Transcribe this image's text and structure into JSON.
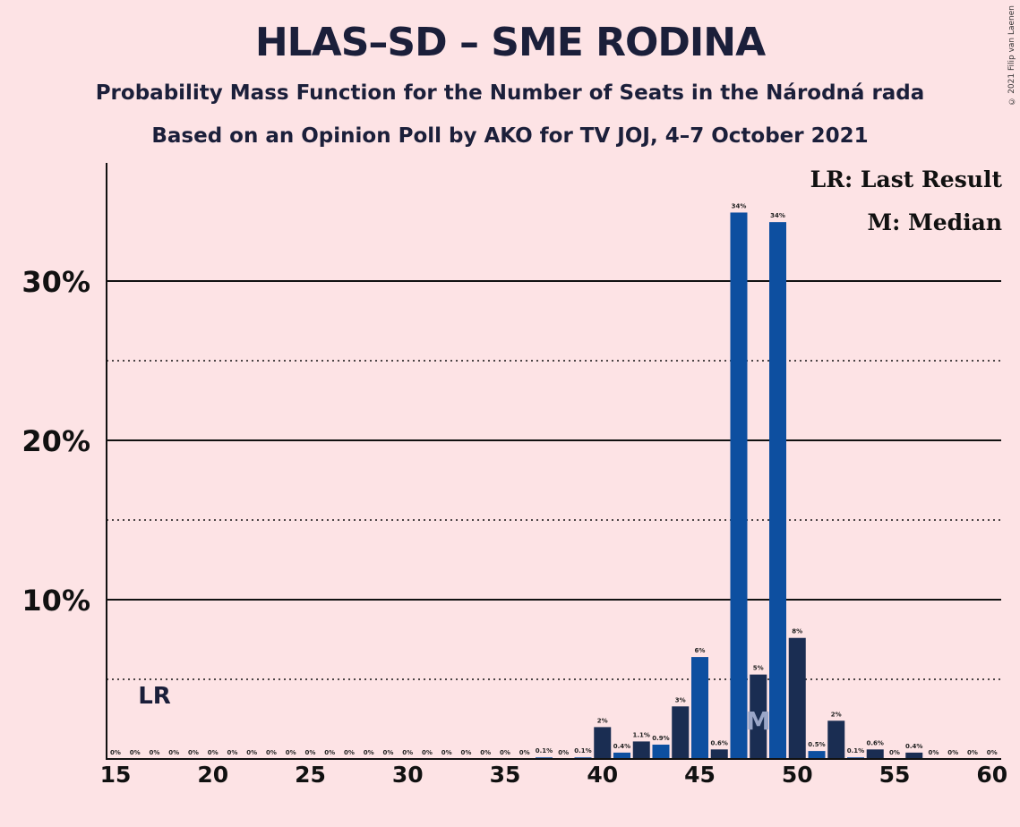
{
  "title": "HLAS–SD – SME RODINA",
  "subtitle1": "Probability Mass Function for the Number of Seats in the Národná rada",
  "subtitle2": "Based on an Opinion Poll by AKO for TV JOJ, 4–7 October 2021",
  "copyright": "© 2021 Filip van Laenen",
  "legend": {
    "lr": "LR: Last Result",
    "median": "M: Median"
  },
  "colors": {
    "background": "#FDE3E5",
    "bar_primary": "#0D4FA0",
    "bar_secondary": "#1A2D52",
    "axis": "#111111"
  },
  "chart_data": {
    "type": "bar",
    "xlim": [
      15,
      60
    ],
    "ylim": [
      0,
      37
    ],
    "x_ticks": [
      15,
      20,
      25,
      30,
      35,
      40,
      45,
      50,
      55,
      60
    ],
    "y_ticks_solid": [
      10,
      20,
      30
    ],
    "y_ticks_dotted": [
      5,
      15,
      25
    ],
    "y_tick_labels": [
      "10%",
      "20%",
      "30%"
    ],
    "last_result": 17,
    "last_result_label": "LR",
    "median": 48,
    "median_label": "M",
    "bars": [
      {
        "x": 15,
        "value": 0,
        "label": "0%"
      },
      {
        "x": 16,
        "value": 0,
        "label": "0%"
      },
      {
        "x": 17,
        "value": 0,
        "label": "0%"
      },
      {
        "x": 18,
        "value": 0,
        "label": "0%"
      },
      {
        "x": 19,
        "value": 0,
        "label": "0%"
      },
      {
        "x": 20,
        "value": 0,
        "label": "0%"
      },
      {
        "x": 21,
        "value": 0,
        "label": "0%"
      },
      {
        "x": 22,
        "value": 0,
        "label": "0%"
      },
      {
        "x": 23,
        "value": 0,
        "label": "0%"
      },
      {
        "x": 24,
        "value": 0,
        "label": "0%"
      },
      {
        "x": 25,
        "value": 0,
        "label": "0%"
      },
      {
        "x": 26,
        "value": 0,
        "label": "0%"
      },
      {
        "x": 27,
        "value": 0,
        "label": "0%"
      },
      {
        "x": 28,
        "value": 0,
        "label": "0%"
      },
      {
        "x": 29,
        "value": 0,
        "label": "0%"
      },
      {
        "x": 30,
        "value": 0,
        "label": "0%"
      },
      {
        "x": 31,
        "value": 0,
        "label": "0%"
      },
      {
        "x": 32,
        "value": 0,
        "label": "0%"
      },
      {
        "x": 33,
        "value": 0,
        "label": "0%"
      },
      {
        "x": 34,
        "value": 0,
        "label": "0%"
      },
      {
        "x": 35,
        "value": 0,
        "label": "0%"
      },
      {
        "x": 36,
        "value": 0,
        "label": "0%"
      },
      {
        "x": 37,
        "value": 0.1,
        "label": "0.1%"
      },
      {
        "x": 38,
        "value": 0,
        "label": "0%"
      },
      {
        "x": 39,
        "value": 0.1,
        "label": "0.1%"
      },
      {
        "x": 40,
        "value": 2.0,
        "label": "2%"
      },
      {
        "x": 41,
        "value": 0.4,
        "label": "0.4%"
      },
      {
        "x": 42,
        "value": 1.1,
        "label": "1.1%"
      },
      {
        "x": 43,
        "value": 0.9,
        "label": "0.9%"
      },
      {
        "x": 44,
        "value": 3.3,
        "label": "3%"
      },
      {
        "x": 45,
        "value": 6.4,
        "label": "6%"
      },
      {
        "x": 46,
        "value": 0.6,
        "label": "0.6%"
      },
      {
        "x": 47,
        "value": 34.3,
        "label": "34%"
      },
      {
        "x": 48,
        "value": 5.3,
        "label": "5%"
      },
      {
        "x": 49,
        "value": 33.7,
        "label": "34%"
      },
      {
        "x": 50,
        "value": 7.6,
        "label": "8%"
      },
      {
        "x": 51,
        "value": 0.5,
        "label": "0.5%"
      },
      {
        "x": 52,
        "value": 2.4,
        "label": "2%"
      },
      {
        "x": 53,
        "value": 0.1,
        "label": "0.1%"
      },
      {
        "x": 54,
        "value": 0.6,
        "label": "0.6%"
      },
      {
        "x": 55,
        "value": 0,
        "label": "0%"
      },
      {
        "x": 56,
        "value": 0.4,
        "label": "0.4%"
      },
      {
        "x": 57,
        "value": 0,
        "label": "0%"
      },
      {
        "x": 58,
        "value": 0,
        "label": "0%"
      },
      {
        "x": 59,
        "value": 0,
        "label": "0%"
      },
      {
        "x": 60,
        "value": 0,
        "label": "0%"
      }
    ]
  }
}
